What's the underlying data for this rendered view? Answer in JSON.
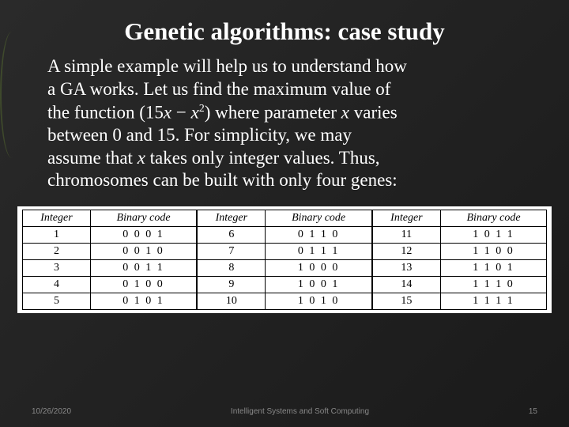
{
  "title": "Genetic algorithms: case study",
  "paragraph": {
    "line1": "A simple example will help us to understand how",
    "line2": "a GA works. Let us find the maximum value of",
    "line3_a": "the function (15",
    "line3_var1": "x",
    "line3_minus": " − ",
    "line3_var2": "x",
    "line3_sup": "2",
    "line3_b": ") where parameter ",
    "line3_var3": "x",
    "line3_c": " varies",
    "line4": "between 0 and 15. For simplicity, we may",
    "line5_a": "assume that ",
    "line5_var": "x",
    "line5_b": " takes only integer values. Thus,",
    "line6": "chromosomes can be built with only four genes:"
  },
  "table": {
    "headers": [
      "Integer",
      "Binary code",
      "Integer",
      "Binary code",
      "Integer",
      "Binary code"
    ],
    "rows": [
      [
        "1",
        "0 0 0 1",
        "6",
        "0 1 1 0",
        "11",
        "1 0 1 1"
      ],
      [
        "2",
        "0 0 1 0",
        "7",
        "0 1 1 1",
        "12",
        "1 1 0 0"
      ],
      [
        "3",
        "0 0 1 1",
        "8",
        "1 0 0 0",
        "13",
        "1 1 0 1"
      ],
      [
        "4",
        "0 1 0 0",
        "9",
        "1 0 0 1",
        "14",
        "1 1 1 0"
      ],
      [
        "5",
        "0 1 0 1",
        "10",
        "1 0 1 0",
        "15",
        "1 1 1 1"
      ]
    ]
  },
  "footer": {
    "date": "10/26/2020",
    "center": "Intelligent Systems and Soft Computing",
    "page": "15"
  },
  "colors": {
    "background_dark": "#1a1a1a",
    "accent": "#556b2f",
    "text": "#ffffff",
    "footer_text": "#888888"
  }
}
